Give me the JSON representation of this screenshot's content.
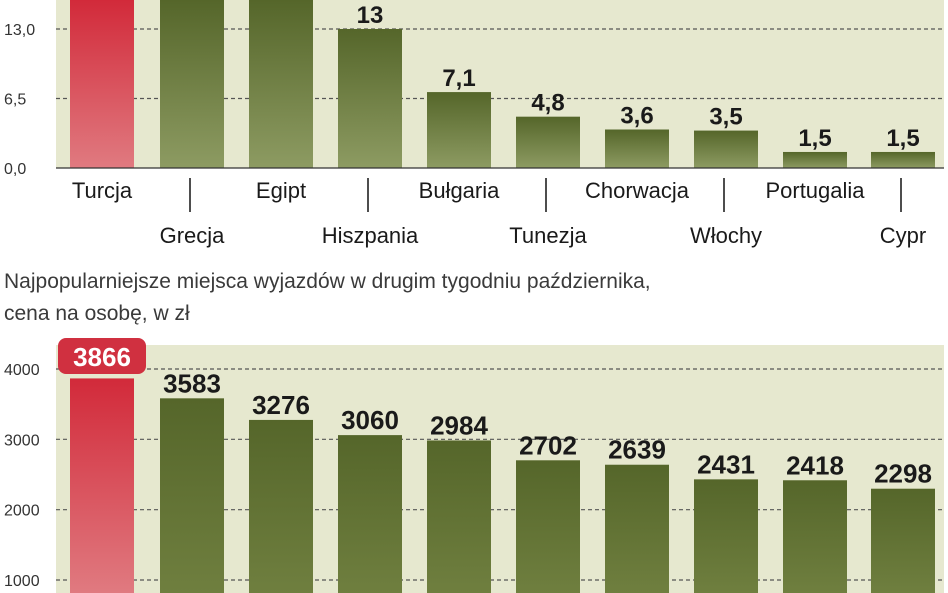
{
  "chart_data": [
    {
      "type": "bar",
      "categories": [
        "Turcja",
        "Grecja",
        "Egipt",
        "Hiszpania",
        "Bułgaria",
        "Tunezja",
        "Chorwacja",
        "Włochy",
        "Portugalia",
        "Cypr"
      ],
      "values": [
        null,
        null,
        null,
        13,
        7.1,
        4.8,
        3.6,
        3.5,
        1.5,
        1.5
      ],
      "data_labels": [
        "",
        "",
        "",
        "13",
        "7,1",
        "4,8",
        "3,6",
        "3,5",
        "1,5",
        "1,5"
      ],
      "ytick_labels": [
        "0,0",
        "6,5",
        "13,0"
      ],
      "yticks": [
        0,
        6.5,
        13
      ],
      "ylim": [
        0,
        13
      ],
      "highlight_color": "#d03040",
      "bar_color": "#5d6e2c",
      "plot_background": "#e6e8cf"
    },
    {
      "type": "bar",
      "title_lines": [
        "Najpopularniejsze miejsca wyjazdów w drugim tygodniu października,",
        "cena na osobę, w zł"
      ],
      "values": [
        3866,
        3583,
        3276,
        3060,
        2984,
        2702,
        2639,
        2431,
        2418,
        2298
      ],
      "data_labels": [
        "3866",
        "3583",
        "3276",
        "3060",
        "2984",
        "2702",
        "2639",
        "2431",
        "2418",
        "2298"
      ],
      "ytick_labels": [
        "1000",
        "2000",
        "3000",
        "4000"
      ],
      "yticks": [
        1000,
        2000,
        3000,
        4000
      ],
      "highlight_color": "#d03040",
      "bar_color": "#5d6e2c",
      "plot_background": "#e6e8cf"
    }
  ]
}
